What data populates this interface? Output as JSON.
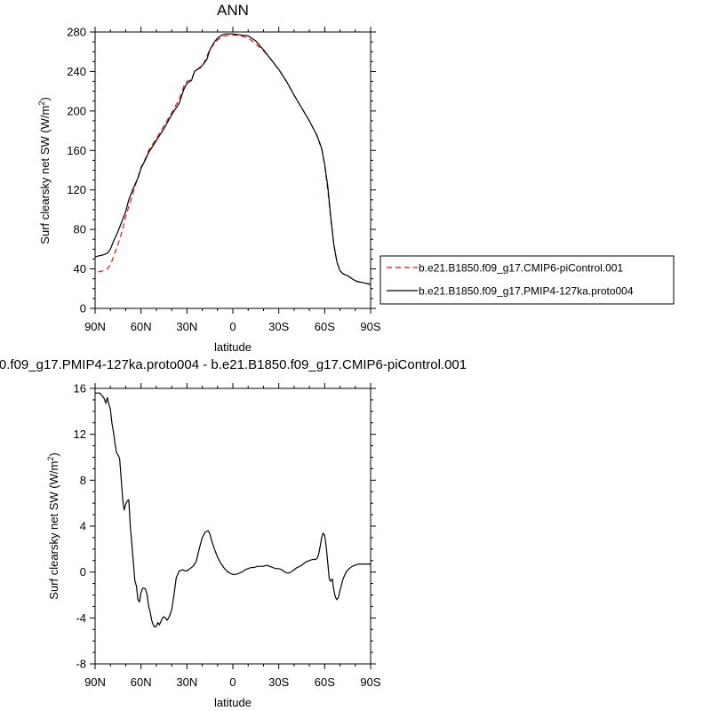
{
  "figure": {
    "top_title": "ANN",
    "bottom_title": "0.f09_g17.PMIP4-127ka.proto004 - b.e21.B1850.f09_g17.CMIP6-piControl.001"
  },
  "chart_data": [
    {
      "type": "line",
      "title": "ANN",
      "xlabel": "latitude",
      "ylabel": "Surf clearsky net SW (W/m",
      "ylabel_sup": "2",
      "ylabel_close": ")",
      "x_ticks": [
        {
          "value": 90,
          "label": "90N"
        },
        {
          "value": 60,
          "label": "60N"
        },
        {
          "value": 30,
          "label": "30N"
        },
        {
          "value": 0,
          "label": "0"
        },
        {
          "value": -30,
          "label": "30S"
        },
        {
          "value": -60,
          "label": "60S"
        },
        {
          "value": -90,
          "label": "90S"
        }
      ],
      "xlim": [
        90,
        -90
      ],
      "ylim": [
        0,
        280
      ],
      "y_ticks": [
        0,
        40,
        80,
        120,
        160,
        200,
        240,
        280
      ],
      "legend_position": "right",
      "series": [
        {
          "name": "b.e21.B1850.f09_g17.CMIP6-piControl.001",
          "color": "#e01010",
          "dash": true,
          "x": [
            88,
            85,
            82,
            80,
            78,
            75,
            72,
            70,
            68,
            65,
            62,
            60,
            57,
            55,
            50,
            45,
            40,
            35,
            32,
            30,
            27,
            25,
            20,
            17,
            15,
            12,
            10,
            7,
            5,
            2,
            0,
            -5,
            -10,
            -15,
            -20,
            -25,
            -30,
            -35,
            -40,
            -45,
            -50,
            -55,
            -58,
            -60,
            -62,
            -64,
            -66,
            -68,
            -70,
            -72,
            -75,
            -78,
            -80,
            -82,
            -85,
            -88,
            -90
          ],
          "y": [
            37,
            38,
            40,
            44,
            52,
            65,
            80,
            93,
            103,
            118,
            133,
            143,
            152,
            160,
            172,
            185,
            198,
            212,
            225,
            230,
            232,
            240,
            245,
            255,
            263,
            268,
            272,
            275,
            276,
            277,
            277,
            276,
            274,
            268,
            261,
            252,
            242,
            230,
            216,
            203,
            190,
            175,
            162,
            145,
            120,
            90,
            65,
            47,
            38,
            35,
            33,
            30,
            28,
            27,
            26,
            25,
            25
          ]
        },
        {
          "name": "b.e21.B1850.f09_g17.PMIP4-127ka.proto004",
          "color": "#000000",
          "dash": false,
          "x": [
            90,
            88,
            85,
            82,
            80,
            78,
            75,
            72,
            70,
            68,
            65,
            62,
            60,
            57,
            55,
            50,
            45,
            40,
            35,
            32,
            30,
            27,
            25,
            20,
            17,
            15,
            12,
            10,
            7,
            5,
            2,
            0,
            -5,
            -10,
            -15,
            -20,
            -25,
            -30,
            -35,
            -40,
            -45,
            -50,
            -55,
            -58,
            -60,
            -62,
            -64,
            -66,
            -68,
            -70,
            -72,
            -75,
            -78,
            -80,
            -82,
            -85,
            -88,
            -90
          ],
          "y": [
            52,
            53,
            54,
            56,
            60,
            68,
            78,
            90,
            98,
            110,
            122,
            132,
            142,
            151,
            158,
            170,
            182,
            196,
            208,
            222,
            228,
            231,
            240,
            246,
            252,
            262,
            270,
            274,
            277,
            278,
            278,
            278,
            277,
            276,
            271,
            262,
            252,
            242,
            230,
            216,
            203,
            190,
            175,
            162,
            146,
            124,
            92,
            64,
            47,
            38,
            35,
            33,
            30,
            28,
            27,
            26,
            25,
            24
          ]
        }
      ]
    },
    {
      "type": "line",
      "title": "0.f09_g17.PMIP4-127ka.proto004 - b.e21.B1850.f09_g17.CMIP6-piControl.001",
      "xlabel": "latitude",
      "ylabel": "Surf clearsky net SW (W/m",
      "ylabel_sup": "2",
      "ylabel_close": ")",
      "x_ticks": [
        {
          "value": 90,
          "label": "90N"
        },
        {
          "value": 60,
          "label": "60N"
        },
        {
          "value": 30,
          "label": "30N"
        },
        {
          "value": 0,
          "label": "0"
        },
        {
          "value": -30,
          "label": "30S"
        },
        {
          "value": -60,
          "label": "60S"
        },
        {
          "value": -90,
          "label": "90S"
        }
      ],
      "xlim": [
        90,
        -90
      ],
      "ylim": [
        -8,
        16
      ],
      "y_ticks": [
        -8,
        -4,
        0,
        4,
        8,
        12,
        16
      ],
      "series": [
        {
          "name": "",
          "color": "#000000",
          "dash": false,
          "x": [
            90,
            87,
            85,
            84,
            83,
            82,
            81,
            80,
            79,
            78,
            77,
            76,
            75,
            74,
            73,
            72,
            71,
            70,
            69,
            68,
            67,
            66,
            65,
            64,
            63,
            62,
            61,
            60,
            59,
            58,
            57,
            56,
            55,
            54,
            53,
            52,
            51,
            50,
            49,
            48,
            47,
            46,
            45,
            44,
            43,
            42,
            41,
            40,
            39,
            38,
            37,
            35,
            33,
            31,
            30,
            28,
            26,
            24,
            22,
            20,
            18,
            16,
            15,
            14,
            12,
            10,
            8,
            6,
            4,
            2,
            0,
            -2,
            -4,
            -6,
            -8,
            -10,
            -12,
            -14,
            -16,
            -18,
            -20,
            -22,
            -24,
            -26,
            -28,
            -30,
            -32,
            -34,
            -36,
            -38,
            -40,
            -42,
            -44,
            -46,
            -48,
            -50,
            -52,
            -54,
            -55,
            -56,
            -57,
            -58,
            -59,
            -60,
            -61,
            -62,
            -63,
            -64,
            -65,
            -66,
            -67,
            -68,
            -69,
            -70,
            -72,
            -74,
            -76,
            -78,
            -80,
            -82,
            -84,
            -86,
            -88,
            -90
          ],
          "y": [
            15.6,
            15.6,
            15.3,
            15.1,
            14.7,
            15.2,
            14.6,
            14.2,
            13.0,
            12.2,
            11.2,
            10.4,
            10.2,
            9.9,
            8.2,
            6.4,
            5.4,
            5.9,
            6.2,
            6.3,
            4.0,
            2.5,
            0.8,
            -0.8,
            -1.2,
            -2.4,
            -2.6,
            -1.8,
            -1.4,
            -1.4,
            -1.5,
            -2.0,
            -3.0,
            -3.5,
            -4.2,
            -4.6,
            -4.8,
            -4.7,
            -4.4,
            -4.6,
            -4.3,
            -4.0,
            -3.9,
            -4.0,
            -4.2,
            -4.0,
            -3.7,
            -3.3,
            -2.5,
            -1.5,
            -0.5,
            0.1,
            0.2,
            0.1,
            0.1,
            0.3,
            0.5,
            0.9,
            2.0,
            3.0,
            3.5,
            3.6,
            3.3,
            2.8,
            2.0,
            1.3,
            0.8,
            0.4,
            0.1,
            -0.1,
            -0.2,
            -0.2,
            -0.1,
            0.0,
            0.2,
            0.3,
            0.4,
            0.4,
            0.5,
            0.5,
            0.5,
            0.6,
            0.5,
            0.4,
            0.3,
            0.3,
            0.2,
            0.0,
            -0.1,
            0.0,
            0.2,
            0.4,
            0.5,
            0.7,
            0.9,
            1.0,
            1.1,
            1.1,
            1.2,
            1.5,
            2.2,
            3.0,
            3.4,
            3.2,
            2.2,
            0.8,
            -0.6,
            -0.8,
            -0.6,
            -1.6,
            -2.2,
            -2.4,
            -2.2,
            -1.6,
            -0.6,
            0.0,
            0.3,
            0.5,
            0.6,
            0.7,
            0.7,
            0.7,
            0.7,
            0.7
          ]
        }
      ]
    }
  ]
}
